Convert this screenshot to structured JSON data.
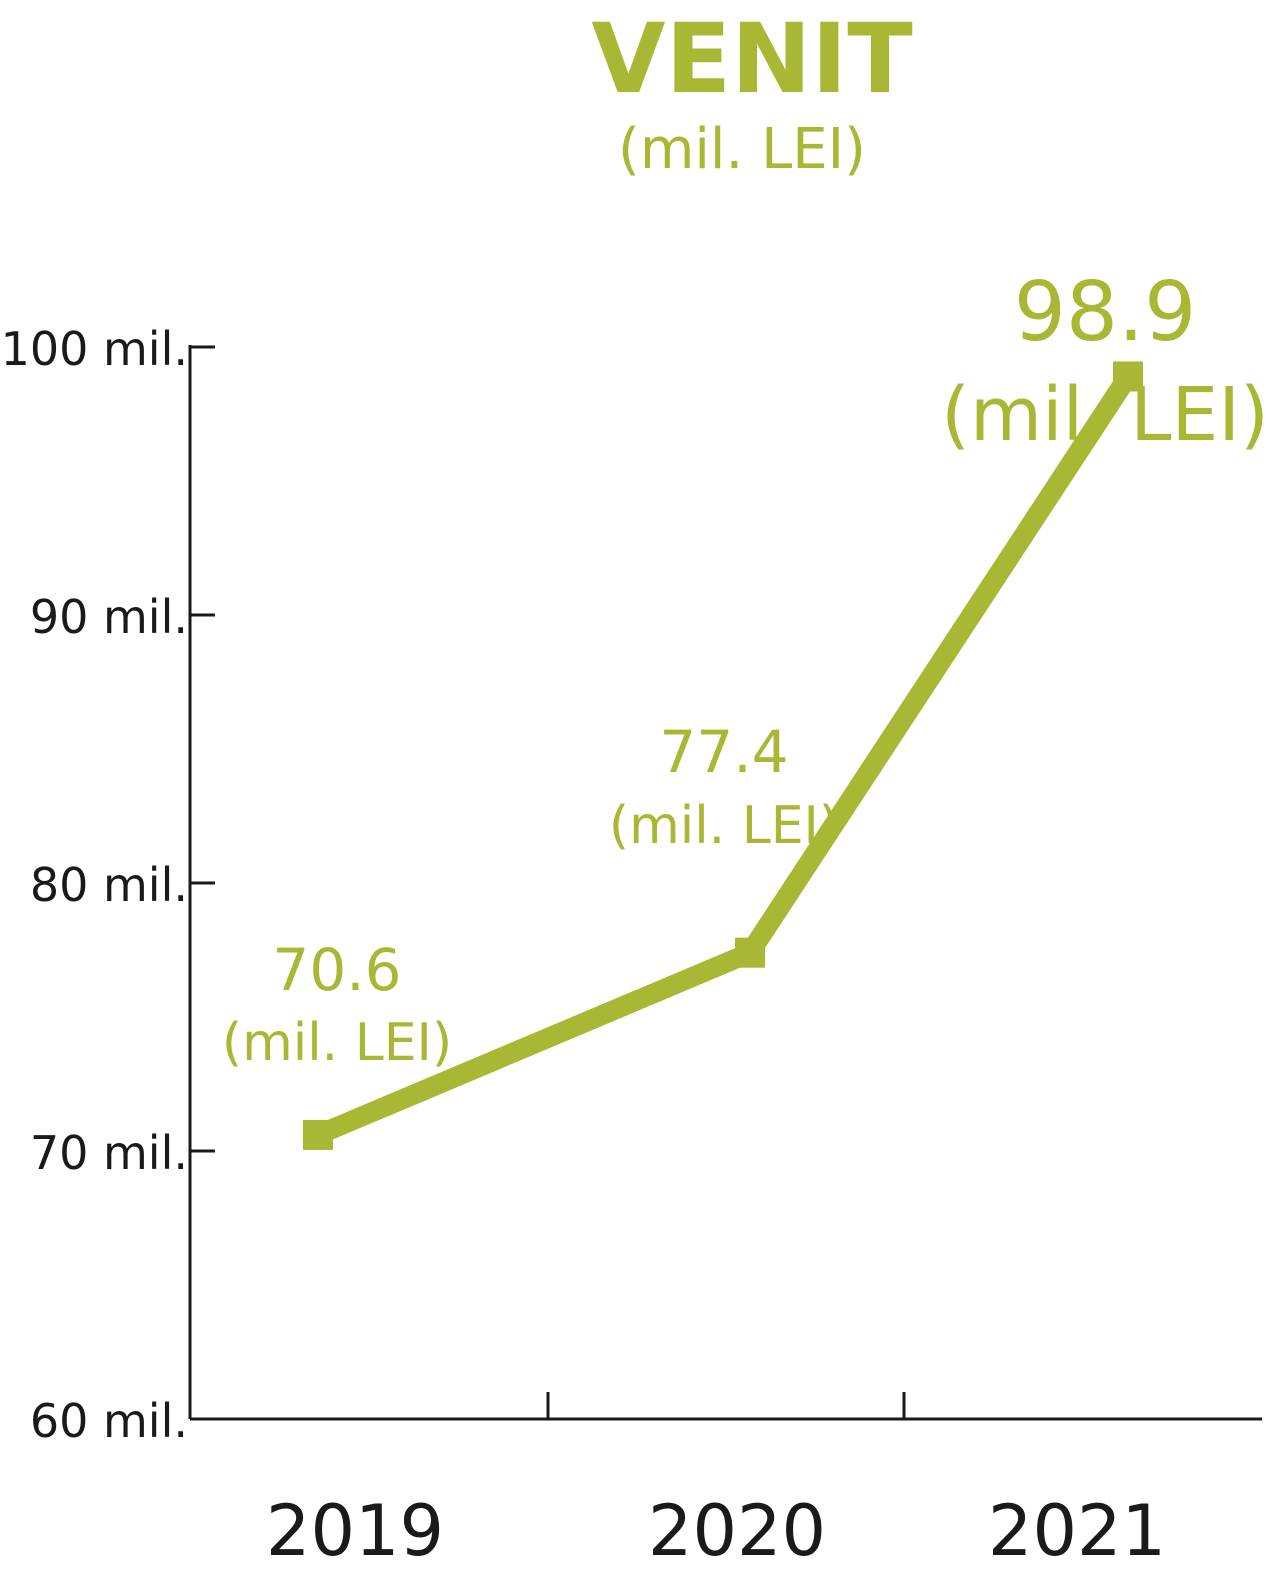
{
  "chart_data": {
    "type": "line",
    "title": "VENIT",
    "subtitle": "(mil. LEI)",
    "xlabel": "",
    "ylabel": "",
    "categories": [
      "2019",
      "2020",
      "2021"
    ],
    "series": [
      {
        "values": [
          70.6,
          77.4,
          98.9
        ]
      }
    ],
    "data_labels": [
      {
        "value": "70.6",
        "unit": "(mil. LEI)"
      },
      {
        "value": "77.4",
        "unit": "(mil. LEI)"
      },
      {
        "value": "98.9",
        "unit": "(mil. LEI)"
      }
    ],
    "ylim": [
      60,
      100
    ],
    "yticks": [
      {
        "value": 100,
        "label": "100 mil."
      },
      {
        "value": 90,
        "label": "90 mil."
      },
      {
        "value": 80,
        "label": "80 mil."
      },
      {
        "value": 70,
        "label": "70 mil."
      },
      {
        "value": 60,
        "label": "60 mil."
      }
    ],
    "grid": false,
    "legend": "none",
    "colors": {
      "accent": "#a8b834",
      "axis": "#1a1a1a"
    }
  }
}
